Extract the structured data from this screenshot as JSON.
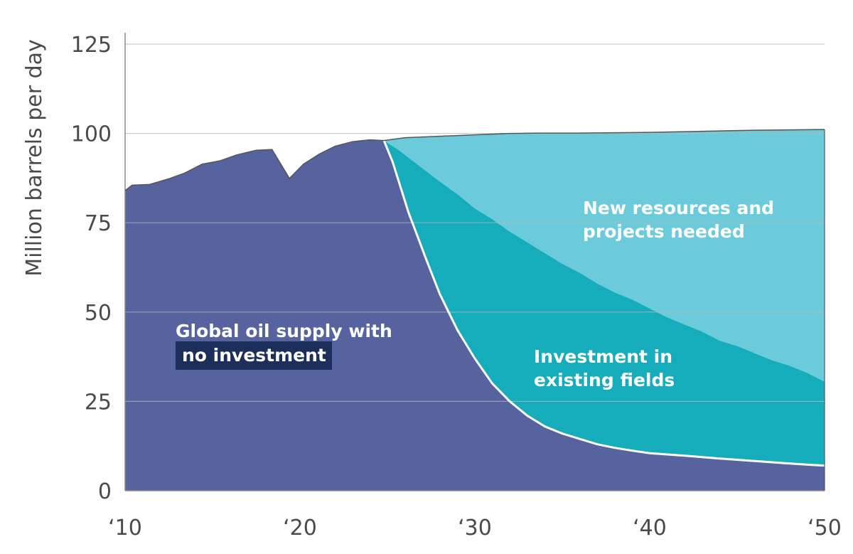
{
  "chart_data": {
    "type": "area",
    "ylabel": "Million barrels per day",
    "xlabel": "",
    "x_tick_labels": [
      "‘10",
      "‘20",
      "‘30",
      "‘40",
      "‘50"
    ],
    "x_ticks": [
      2010,
      2020,
      2030,
      2040,
      2050
    ],
    "y_ticks": [
      0,
      25,
      50,
      75,
      100,
      125
    ],
    "xlim": [
      2010,
      2050
    ],
    "ylim": [
      0,
      125
    ],
    "grid": true,
    "series": [
      {
        "name": "Global oil supply with no investment",
        "color": "#56639e",
        "x": [
          2010,
          2010.4,
          2011.4,
          2012.5,
          2013.4,
          2014.4,
          2015.4,
          2016.4,
          2017.5,
          2018.4,
          2019.4,
          2020.2,
          2021.1,
          2022.0,
          2023.0,
          2024.0,
          2024.8,
          2025.3,
          2026.2,
          2027.2,
          2028.0,
          2029.0,
          2030.0,
          2031.0,
          2032.0,
          2033.0,
          2034.0,
          2035.0,
          2036.0,
          2037.0,
          2038.0,
          2039.0,
          2040.0,
          2042.0,
          2044.0,
          2046.0,
          2048.0,
          2050.0
        ],
        "values": [
          84.0,
          85.5,
          85.7,
          87.3,
          88.9,
          91.4,
          92.3,
          94.0,
          95.3,
          95.5,
          87.4,
          91.4,
          94.2,
          96.4,
          97.7,
          98.2,
          98.0,
          92.0,
          78.0,
          65.0,
          55.0,
          45.0,
          37.0,
          30.0,
          25.0,
          21.0,
          18.0,
          16.0,
          14.5,
          13.0,
          12.0,
          11.2,
          10.5,
          9.8,
          9.0,
          8.3,
          7.6,
          7.0
        ]
      },
      {
        "name": "Investment in existing fields",
        "color": "#15adbb",
        "x": [
          2024.8,
          2025.6,
          2026.4,
          2027.2,
          2028.0,
          2029.0,
          2030.0,
          2031.0,
          2032.0,
          2033.0,
          2034.0,
          2035.0,
          2036.0,
          2037.0,
          2038.0,
          2039.0,
          2040.0,
          2041.0,
          2042.0,
          2043.0,
          2044.0,
          2045.0,
          2046.0,
          2047.0,
          2048.0,
          2049.0,
          2050.0
        ],
        "values": [
          98.0,
          95.5,
          92.5,
          89.5,
          86.5,
          83.0,
          79.0,
          76.0,
          72.5,
          69.5,
          66.5,
          63.5,
          61.0,
          58.0,
          55.5,
          53.5,
          51.0,
          48.5,
          46.5,
          44.5,
          42.0,
          40.5,
          38.5,
          36.5,
          35.0,
          33.0,
          30.5
        ]
      },
      {
        "name": "New resources and projects needed",
        "color": "#6ccbdb",
        "x": [
          2024.8,
          2026,
          2028,
          2030,
          2032,
          2034,
          2036,
          2038,
          2040,
          2042,
          2044,
          2046,
          2048,
          2050
        ],
        "values": [
          98.0,
          98.8,
          99.2,
          99.6,
          100.0,
          100.1,
          100.1,
          100.2,
          100.3,
          100.5,
          100.7,
          100.9,
          101.0,
          101.1
        ]
      }
    ],
    "annotations": {
      "global_line1": "Global oil supply with",
      "global_line2": "no investment",
      "new_line1": "New resources and",
      "new_line2": "projects needed",
      "inv_line1": "Investment in",
      "inv_line2": "existing fields"
    },
    "colors": {
      "grid": "#b7b7b7",
      "axis": "#8a8a8a",
      "text": "#4a4a4a",
      "label_box": "#1b2f5a",
      "outline": "#555555"
    }
  }
}
